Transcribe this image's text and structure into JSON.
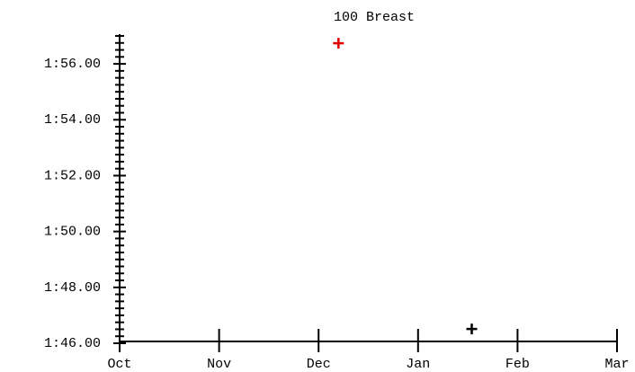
{
  "chart_data": {
    "type": "scatter",
    "title": "100 Breast",
    "x": [
      2.2,
      3.54
    ],
    "values": [
      116.74,
      106.51
    ],
    "colors": [
      "#e00000",
      "#000000"
    ],
    "xlim": [
      0,
      5
    ],
    "xticks": [
      {
        "value": 0,
        "label": "Oct"
      },
      {
        "value": 1,
        "label": "Nov"
      },
      {
        "value": 2,
        "label": "Dec"
      },
      {
        "value": 3,
        "label": "Jan"
      },
      {
        "value": 4,
        "label": "Feb"
      },
      {
        "value": 5,
        "label": "Mar"
      }
    ],
    "ylim": [
      106,
      117
    ],
    "yticks": [
      {
        "value": 106,
        "label": "1:46.00"
      },
      {
        "value": 108,
        "label": "1:48.00"
      },
      {
        "value": 110,
        "label": "1:50.00"
      },
      {
        "value": 112,
        "label": "1:52.00"
      },
      {
        "value": 114,
        "label": "1:54.00"
      },
      {
        "value": 116,
        "label": "1:56.00"
      }
    ],
    "yminorticks": [
      106.25,
      106.5,
      106.75,
      107,
      107.25,
      107.5,
      107.75,
      108.25,
      108.5,
      108.75,
      109,
      109.25,
      109.5,
      109.75,
      110.25,
      110.5,
      110.75,
      111,
      111.25,
      111.5,
      111.75,
      112.25,
      112.5,
      112.75,
      113,
      113.25,
      113.5,
      113.75,
      114.25,
      114.5,
      114.75,
      115,
      115.25,
      115.5,
      115.75,
      116.25,
      116.5,
      116.75,
      117
    ]
  }
}
